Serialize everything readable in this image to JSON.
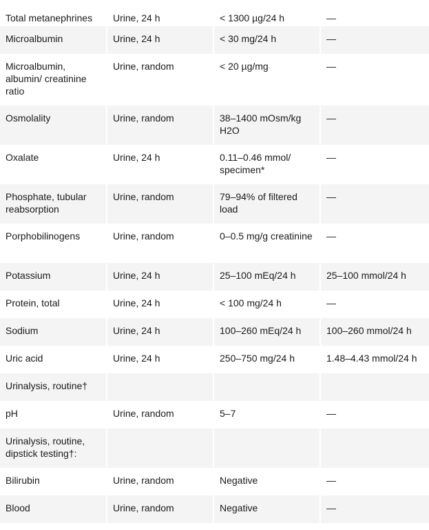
{
  "rows": [
    {
      "test": "Total metanephrines",
      "specimen": "Urine, 24 h",
      "conventional": "< 1300 µg/24 h",
      "si": "—"
    },
    {
      "test": "Microalbumin",
      "specimen": "Urine, 24 h",
      "conventional": "< 30 mg/24 h",
      "si": "—"
    },
    {
      "test": "Microalbumin, albumin/ creatinine ratio",
      "specimen": "Urine, random",
      "conventional": "< 20 µg/mg",
      "si": "—"
    },
    {
      "test": "Osmolality",
      "specimen": "Urine, random",
      "conventional": "38–1400 mOsm/kg H2O",
      "si": "—"
    },
    {
      "test": "Oxalate",
      "specimen": "Urine, 24 h",
      "conventional": "0.11–0.46 mmol/ specimen*",
      "si": "—"
    },
    {
      "test": "Phosphate, tubular reabsorption",
      "specimen": "Urine, random",
      "conventional": "79–94% of filtered load",
      "si": "—"
    },
    {
      "test": "Porphobilinogens",
      "specimen": "Urine, random",
      "conventional": "0–0.5 mg/g creatinine",
      "si": "—"
    },
    {
      "test": "Potassium",
      "specimen": "Urine, 24 h",
      "conventional": "25–100 mEq/24 h",
      "si": "25–100 mmol/24 h"
    },
    {
      "test": "Protein, total",
      "specimen": "Urine, 24 h",
      "conventional": "< 100 mg/24 h",
      "si": "—"
    },
    {
      "test": "Sodium",
      "specimen": "Urine, 24 h",
      "conventional": "100–260 mEq/24 h",
      "si": "100–260 mmol/24 h"
    },
    {
      "test": "Uric acid",
      "specimen": "Urine, 24 h",
      "conventional": "250–750 mg/24 h",
      "si": "1.48–4.43 mmol/24 h"
    },
    {
      "test": "Urinalysis, routine†",
      "specimen": "",
      "conventional": "",
      "si": ""
    },
    {
      "test": "pH",
      "specimen": "Urine, random",
      "conventional": "5–7",
      "si": "—"
    },
    {
      "test": "Urinalysis, routine, dipstick testing†:",
      "specimen": "",
      "conventional": "",
      "si": ""
    },
    {
      "test": "Bilirubin",
      "specimen": "Urine, random",
      "conventional": "Negative",
      "si": "—"
    },
    {
      "test": "Blood",
      "specimen": "Urine, random",
      "conventional": "Negative",
      "si": "—"
    }
  ]
}
